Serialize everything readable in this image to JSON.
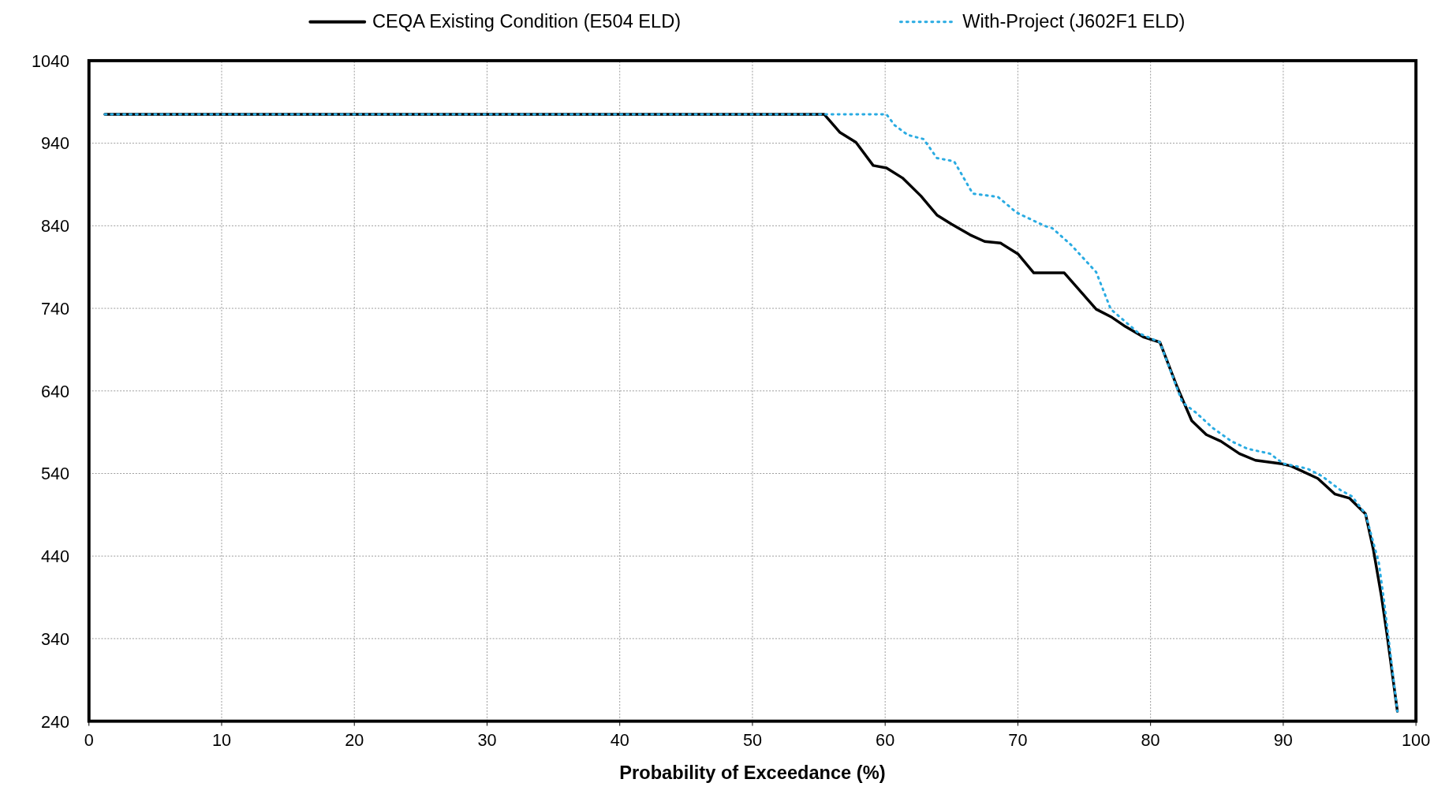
{
  "chart_data": {
    "type": "line",
    "xlabel": "Probability of Exceedance (%)",
    "xlim": [
      0,
      100
    ],
    "xticks": [
      0,
      10,
      20,
      30,
      40,
      50,
      60,
      70,
      80,
      90,
      100
    ],
    "ylim": [
      240,
      1040
    ],
    "yticks": [
      240,
      340,
      440,
      540,
      640,
      740,
      840,
      940,
      1040
    ],
    "grid": true,
    "legend": "top",
    "marker": "none",
    "series": [
      {
        "name": "CEQA Existing Condition (E504 ELD)",
        "color": "#000000",
        "line_style": "solid",
        "x": [
          1.2,
          55.4,
          56.6,
          57.8,
          59.1,
          60.1,
          61.3,
          62.7,
          63.9,
          65.0,
          66.4,
          67.5,
          68.7,
          70.0,
          71.2,
          73.5,
          75.9,
          77.1,
          78.1,
          79.5,
          80.7,
          82.0,
          83.1,
          84.2,
          85.3,
          86.7,
          87.9,
          89.8,
          90.6,
          92.6,
          93.9,
          95.0,
          96.2,
          96.8,
          97.4,
          97.8,
          98.6
        ],
        "values": [
          975,
          975,
          953,
          941,
          913,
          910,
          898,
          876,
          853,
          842,
          829,
          821,
          819,
          806,
          783,
          783,
          739,
          729,
          718,
          705,
          699,
          645,
          604,
          587,
          579,
          564,
          556,
          552,
          549,
          534,
          515,
          510,
          491,
          447,
          391,
          347,
          252
        ]
      },
      {
        "name": "With-Project (J602F1 ELD)",
        "color": "#29abe2",
        "line_style": "dotted",
        "x": [
          1.2,
          60.1,
          60.7,
          61.7,
          62.9,
          63.9,
          65.2,
          66.6,
          68.5,
          69.9,
          72.0,
          72.6,
          74.0,
          75.9,
          77.0,
          79.1,
          80.7,
          82.4,
          83.4,
          84.7,
          86.1,
          87.3,
          89.0,
          90.0,
          91.8,
          92.9,
          94.3,
          95.2,
          96.2,
          97.2,
          97.6,
          98.6
        ],
        "values": [
          975,
          975,
          962,
          950,
          945,
          922,
          918,
          879,
          875,
          856,
          840,
          837,
          817,
          784,
          739,
          710,
          699,
          626,
          614,
          595,
          579,
          570,
          564,
          552,
          546,
          537,
          520,
          512,
          491,
          432,
          385,
          252
        ]
      }
    ]
  }
}
